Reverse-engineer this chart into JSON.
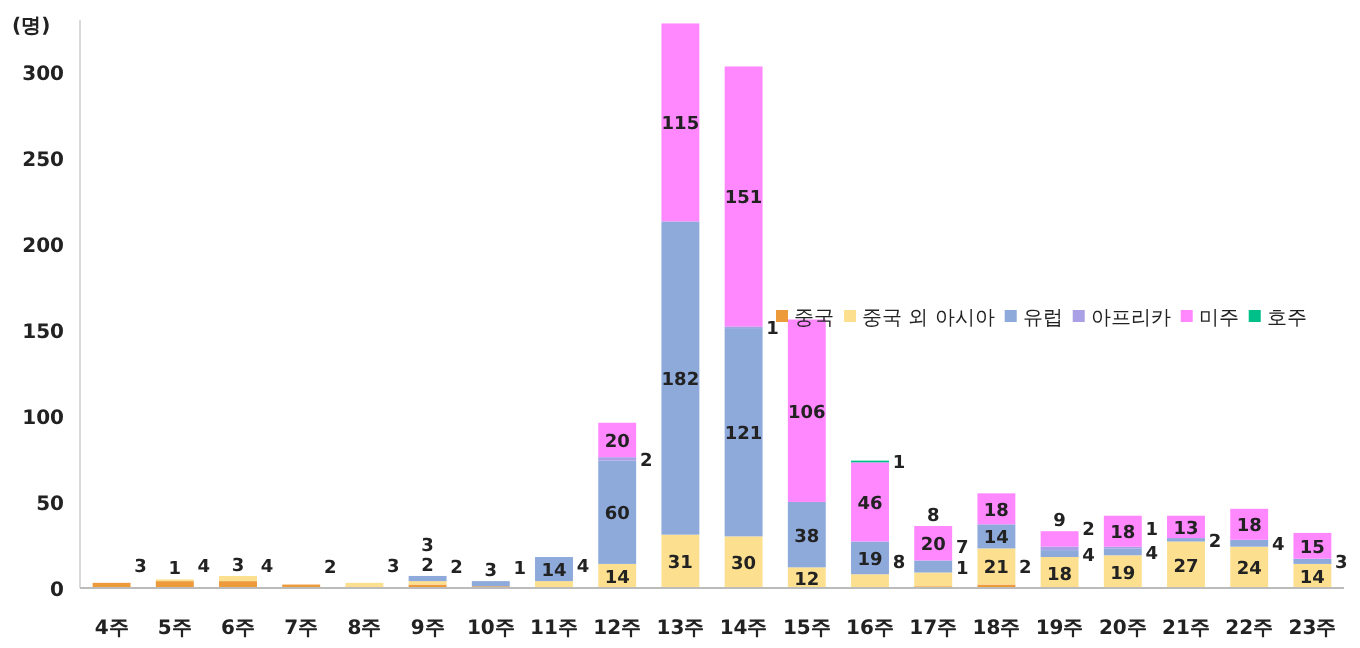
{
  "chart_data": {
    "type": "bar",
    "stacked": true,
    "ylabel": "(명)",
    "ylim": [
      0,
      330
    ],
    "yticks": [
      0,
      50,
      100,
      150,
      200,
      250,
      300
    ],
    "grid": false,
    "legend": "right",
    "data_labels": true,
    "categories": [
      "4주",
      "5주",
      "6주",
      "7주",
      "8주",
      "9주",
      "10주",
      "11주",
      "12주",
      "13주",
      "14주",
      "15주",
      "16주",
      "17주",
      "18주",
      "19주",
      "20주",
      "21주",
      "22주",
      "23주"
    ],
    "series": [
      {
        "name": "중국",
        "color": "#ed9a3b",
        "values": [
          3,
          4,
          4,
          2,
          null,
          2,
          1,
          null,
          null,
          null,
          null,
          null,
          null,
          1,
          2,
          null,
          null,
          null,
          null,
          null
        ]
      },
      {
        "name": "중국 외 아시아",
        "color": "#fde08f",
        "values": [
          null,
          1,
          3,
          null,
          3,
          2,
          null,
          4,
          14,
          31,
          30,
          12,
          8,
          8,
          21,
          18,
          19,
          27,
          24,
          14
        ]
      },
      {
        "name": "유럽",
        "color": "#8eaadb",
        "values": [
          null,
          null,
          null,
          null,
          null,
          3,
          3,
          14,
          60,
          182,
          121,
          38,
          19,
          7,
          14,
          4,
          4,
          2,
          4,
          3
        ]
      },
      {
        "name": "아프리카",
        "color": "#a9a0e6",
        "values": [
          null,
          null,
          null,
          null,
          null,
          null,
          null,
          null,
          2,
          null,
          1,
          null,
          null,
          null,
          null,
          2,
          1,
          null,
          null,
          null
        ]
      },
      {
        "name": "미주",
        "color": "#ff88ff",
        "values": [
          null,
          null,
          null,
          null,
          null,
          null,
          null,
          null,
          20,
          115,
          151,
          106,
          46,
          20,
          18,
          9,
          18,
          13,
          18,
          15
        ]
      },
      {
        "name": "호주",
        "color": "#00c08a",
        "values": [
          null,
          null,
          null,
          null,
          null,
          null,
          null,
          null,
          null,
          null,
          null,
          null,
          1,
          null,
          null,
          null,
          null,
          null,
          null,
          null
        ]
      }
    ]
  }
}
